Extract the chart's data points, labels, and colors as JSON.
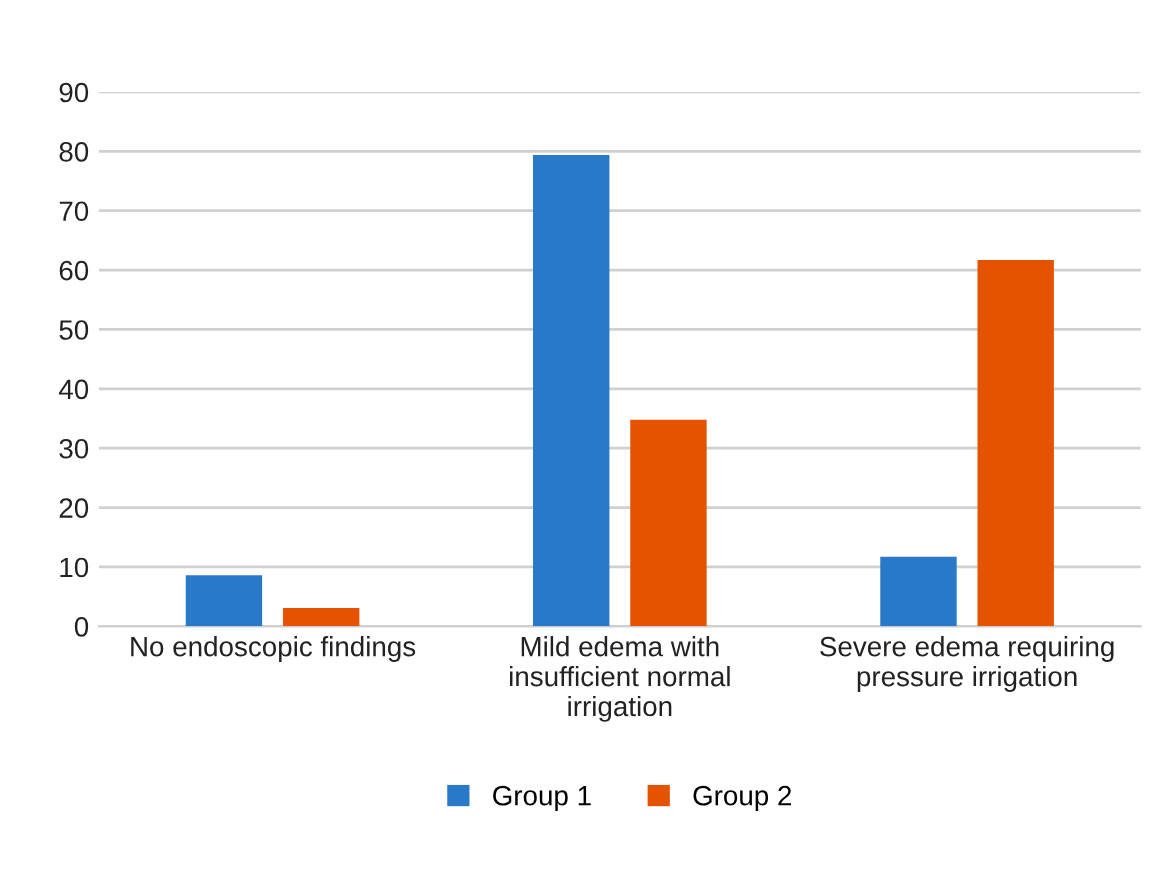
{
  "chart_data": {
    "type": "bar",
    "categories": [
      "No endoscopic findings",
      "Mild edema with insufficient normal irrigation",
      "Severe edema requiring pressure irrigation"
    ],
    "series": [
      {
        "name": "Group 1",
        "color": "#2879c8",
        "values": [
          8.6,
          79.4,
          11.7
        ]
      },
      {
        "name": "Group 2",
        "color": "#e55300",
        "values": [
          3.1,
          34.8,
          61.7
        ]
      }
    ],
    "ylim": [
      0,
      90
    ],
    "yticks": [
      0,
      10,
      20,
      30,
      40,
      50,
      60,
      70,
      80,
      90
    ],
    "grid": "y",
    "legend": "bottom"
  }
}
